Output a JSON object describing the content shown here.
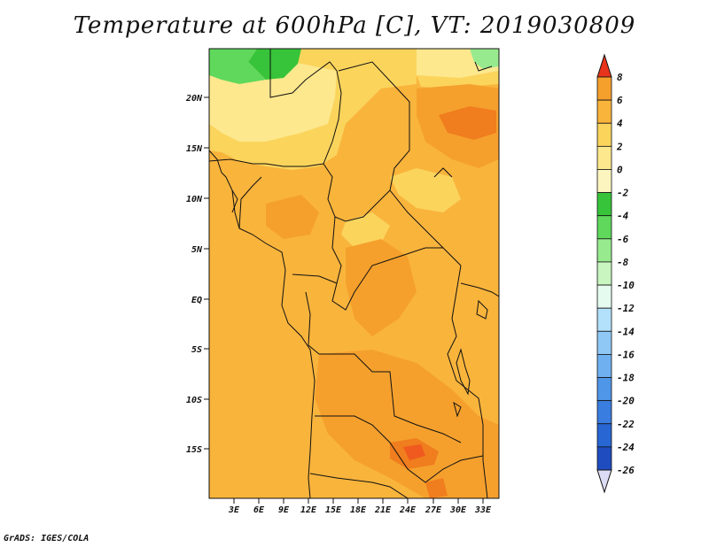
{
  "title": "Temperature at 600hPa [C], VT: 2019030809",
  "credit": "GrADS: IGES/COLA",
  "map": {
    "lat_labels": [
      "20N",
      "15N",
      "10N",
      "5N",
      "EQ",
      "5S",
      "10S",
      "15S"
    ],
    "lon_labels": [
      "3E",
      "6E",
      "9E",
      "12E",
      "15E",
      "18E",
      "21E",
      "24E",
      "27E",
      "30E",
      "33E"
    ]
  },
  "colorbar": {
    "labels": [
      "8",
      "6",
      "4",
      "2",
      "0",
      "-2",
      "-4",
      "-6",
      "-8",
      "-10",
      "-12",
      "-14",
      "-16",
      "-18",
      "-20",
      "-22",
      "-24",
      "-26"
    ],
    "colors": [
      "#d7301f",
      "#f05a1e",
      "#f07d1e",
      "#f5a02d",
      "#f9b43c",
      "#fbd45c",
      "#fde88e",
      "#fdf5c0",
      "#37c43a",
      "#5fd85c",
      "#98ea8e",
      "#c8f5c0",
      "#e6fbf0",
      "#b3e0fa",
      "#8fc8f5",
      "#6fb0f0",
      "#4f96e8",
      "#3a7de0",
      "#2866d4",
      "#1f4dc0",
      "#1430a0",
      "#0d1a78"
    ],
    "top_color": "#e8341c",
    "bottom_color": "#dcdcf5"
  }
}
